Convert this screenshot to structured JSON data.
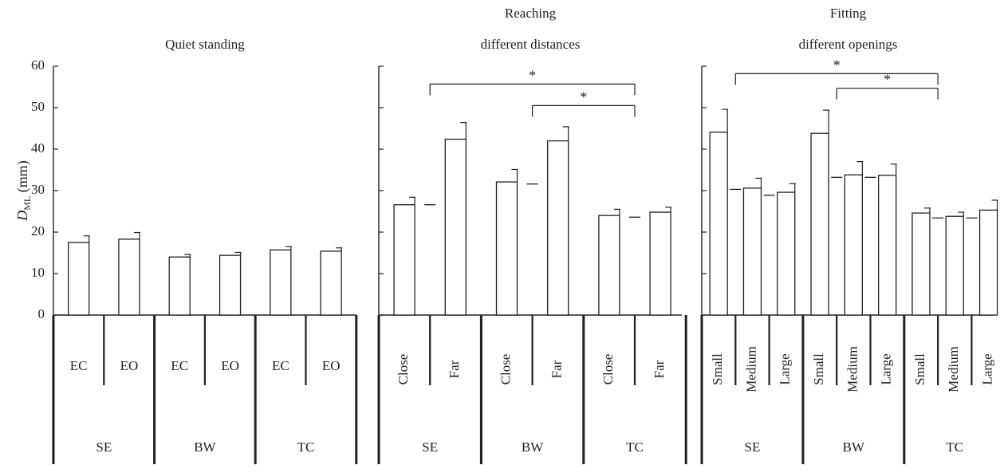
{
  "chart_data": {
    "type": "bar",
    "y_axis": {
      "label_main": "D",
      "label_sub": "ML",
      "label_unit": " (mm)",
      "ylim": [
        0,
        60
      ],
      "ticks": [
        0,
        10,
        20,
        30,
        40,
        50,
        60
      ]
    },
    "panels": [
      {
        "title_lines": [
          "Quiet standing"
        ],
        "groups": [
          "SE",
          "BW",
          "TC"
        ],
        "conditions": [
          "EC",
          "EO"
        ],
        "vertical_labels": false,
        "values": [
          [
            17.5,
            18.3
          ],
          [
            14.0,
            14.4
          ],
          [
            15.7,
            15.4
          ]
        ],
        "errors": [
          [
            1.6,
            1.6
          ],
          [
            0.6,
            0.7
          ],
          [
            0.8,
            0.8
          ]
        ],
        "group_means": null,
        "brackets": []
      },
      {
        "title_lines": [
          "Reaching",
          "different distances"
        ],
        "groups": [
          "SE",
          "BW",
          "TC"
        ],
        "conditions": [
          "Close",
          "Far"
        ],
        "vertical_labels": true,
        "values": [
          [
            26.6,
            42.4
          ],
          [
            32.1,
            42.0
          ],
          [
            24.0,
            24.8
          ]
        ],
        "errors": [
          [
            1.8,
            4.0
          ],
          [
            3.0,
            3.4
          ],
          [
            1.5,
            1.2
          ]
        ],
        "group_means": [
          26.6,
          31.6,
          23.6
        ],
        "brackets": [
          {
            "from_group": "SE",
            "to_group": "TC",
            "y": 55.7,
            "label": "*"
          },
          {
            "from_group": "BW",
            "to_group": "TC",
            "y": 50.5,
            "label": "*"
          }
        ]
      },
      {
        "title_lines": [
          "Fitting",
          "different openings"
        ],
        "groups": [
          "SE",
          "BW",
          "TC"
        ],
        "conditions": [
          "Small",
          "Medium",
          "Large"
        ],
        "vertical_labels": true,
        "values": [
          [
            44.1,
            30.6,
            29.6
          ],
          [
            43.8,
            33.8,
            33.7
          ],
          [
            24.6,
            23.8,
            25.3
          ]
        ],
        "errors": [
          [
            5.5,
            2.4,
            2.1
          ],
          [
            5.6,
            3.2,
            2.7
          ],
          [
            1.2,
            1.0,
            2.4
          ]
        ],
        "group_means": [
          [
            30.3,
            28.9
          ],
          [
            33.2,
            33.2
          ],
          [
            23.4,
            23.4
          ]
        ],
        "brackets": [
          {
            "from_group": "SE",
            "to_group": "TC",
            "y": 58.2,
            "label": "*"
          },
          {
            "from_group": "BW",
            "to_group": "TC",
            "y": 54.7,
            "label": "*"
          }
        ]
      }
    ]
  }
}
